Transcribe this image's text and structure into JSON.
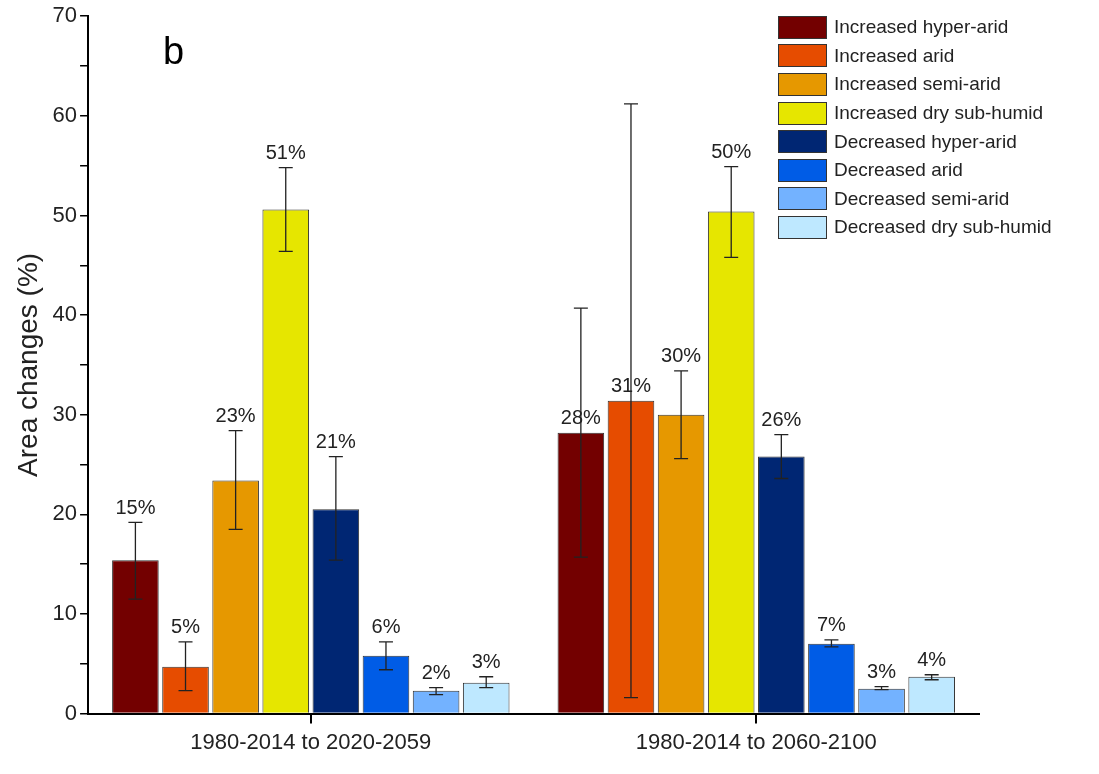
{
  "chart_data": {
    "type": "bar",
    "ylabel": "Area changes (%)",
    "annotations": [
      "b"
    ],
    "categories": [
      "1980-2014 to 2020-2059",
      "1980-2014 to 2060-2100"
    ],
    "ylim": [
      0,
      70
    ],
    "yticks": [
      0,
      {
        "value": 5,
        "label": null
      },
      10,
      {
        "value": 15,
        "label": null
      },
      20,
      {
        "value": 25,
        "label": null
      },
      30,
      {
        "value": 35,
        "label": null
      },
      40,
      {
        "value": 45,
        "label": null
      },
      50,
      {
        "value": 55,
        "label": null
      },
      60,
      {
        "value": 65,
        "label": null
      },
      70
    ],
    "grid": false,
    "legend": "top right",
    "series": [
      {
        "name": "Increased hyper-arid",
        "color": "#730000",
        "values": [
          15.4,
          28.2
        ],
        "errors": [
          [
            11.5,
            19.2
          ],
          [
            15.7,
            40.7
          ]
        ],
        "value_labels": [
          "15%",
          "28%"
        ]
      },
      {
        "name": "Increased arid",
        "color": "#e64c00",
        "values": [
          4.7,
          31.4
        ],
        "errors": [
          [
            2.3,
            7.2
          ],
          [
            1.6,
            61.2
          ]
        ],
        "value_labels": [
          "5%",
          "31%"
        ]
      },
      {
        "name": "Increased semi-arid",
        "color": "#e69800",
        "values": [
          23.4,
          30.0
        ],
        "errors": [
          [
            18.5,
            28.4
          ],
          [
            25.6,
            34.4
          ]
        ],
        "value_labels": [
          "23%",
          "30%"
        ]
      },
      {
        "name": "Increased dry sub-humid",
        "color": "#e6e600",
        "values": [
          50.6,
          50.4
        ],
        "errors": [
          [
            46.4,
            54.8
          ],
          [
            45.8,
            54.9
          ]
        ],
        "value_labels": [
          "51%",
          "50%"
        ]
      },
      {
        "name": "Decreased hyper-arid",
        "color": "#002673",
        "values": [
          20.5,
          25.8
        ],
        "errors": [
          [
            15.4,
            25.8
          ],
          [
            23.6,
            28.0
          ]
        ],
        "value_labels": [
          "21%",
          "26%"
        ]
      },
      {
        "name": "Decreased arid",
        "color": "#005ce6",
        "values": [
          5.8,
          7.0
        ],
        "errors": [
          [
            4.4,
            7.2
          ],
          [
            6.7,
            7.4
          ]
        ],
        "value_labels": [
          "6%",
          "7%"
        ]
      },
      {
        "name": "Decreased semi-arid",
        "color": "#73b2ff",
        "values": [
          2.3,
          2.5
        ],
        "errors": [
          [
            1.9,
            2.6
          ],
          [
            2.4,
            2.7
          ]
        ],
        "value_labels": [
          "2%",
          "3%"
        ]
      },
      {
        "name": "Decreased dry sub-humid",
        "color": "#bee8ff",
        "values": [
          3.1,
          3.7
        ],
        "errors": [
          [
            2.6,
            3.7
          ],
          [
            3.4,
            3.9
          ]
        ],
        "value_labels": [
          "3%",
          "4%"
        ]
      }
    ]
  }
}
